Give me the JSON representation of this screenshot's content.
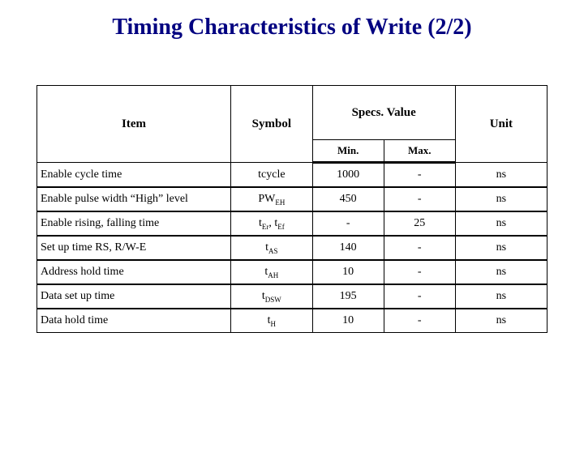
{
  "title": "Timing Characteristics of Write (2/2)",
  "columns": {
    "item": "Item",
    "symbol": "Symbol",
    "specs": "Specs. Value",
    "min": "Min.",
    "max": "Max.",
    "unit": "Unit"
  },
  "rows": [
    {
      "item": "Enable cycle time",
      "symbol_html": "tcycle",
      "min": "1000",
      "max": "-",
      "unit": "ns"
    },
    {
      "item": "Enable pulse width    “High” level",
      "symbol_html": "PW<span class='sub'>EH</span>",
      "min": "450",
      "max": "-",
      "unit": "ns"
    },
    {
      "item": "Enable rising, falling time",
      "symbol_html": "t<span class='sub'>Er</span>, t<span class='sub'>Ef</span>",
      "min": "-",
      "max": "25",
      "unit": "ns"
    },
    {
      "item": "Set up time           RS, R/W-E",
      "symbol_html": "t<span class='sub'>AS</span>",
      "min": "140",
      "max": "-",
      "unit": "ns"
    },
    {
      "item": "Address hold time",
      "symbol_html": "t<span class='sub'>AH</span>",
      "min": "10",
      "max": "-",
      "unit": "ns"
    },
    {
      "item": "Data set up time",
      "symbol_html": "t<span class='sub'>DSW</span>",
      "min": "195",
      "max": "-",
      "unit": "ns"
    },
    {
      "item": "Data hold time",
      "symbol_html": "t<span class='sub'>H</span>",
      "min": "10",
      "max": "-",
      "unit": "ns"
    }
  ],
  "style": {
    "title_color": "#000080",
    "title_fontsize": 28,
    "body_fontsize": 14,
    "border_color": "#000000",
    "row_divider_weight": 2,
    "header_divider_weight": 3,
    "background": "#ffffff"
  }
}
